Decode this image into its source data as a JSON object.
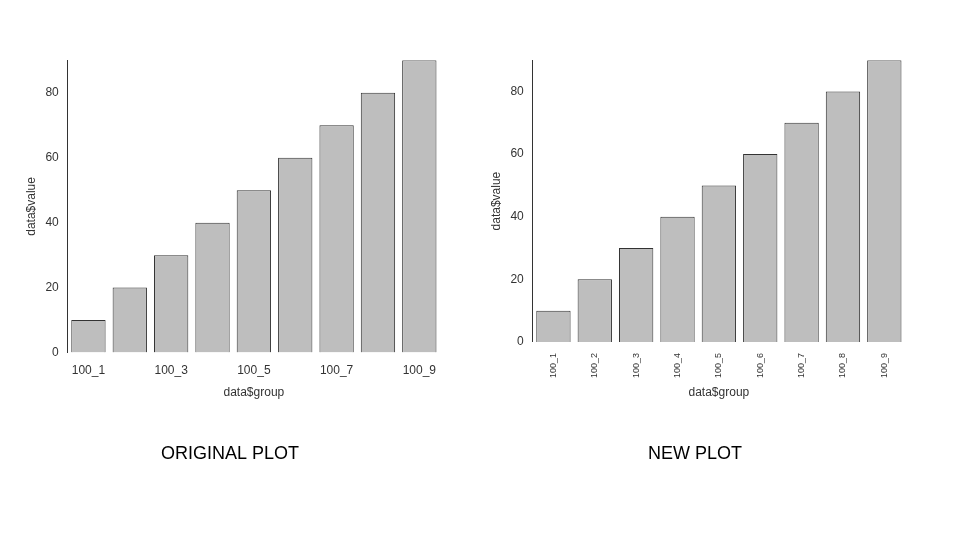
{
  "chart_data": [
    {
      "type": "bar",
      "title": "ORIGINAL PLOT",
      "x_label": "data$group",
      "y_label": "data$value",
      "categories": [
        "100_1",
        null,
        "100_3",
        null,
        "100_5",
        null,
        "100_7",
        null,
        "100_9"
      ],
      "values": [
        10,
        20,
        30,
        40,
        50,
        60,
        70,
        80,
        90
      ],
      "color": "#bebebe",
      "ylim": [
        0,
        90
      ],
      "yticks": [
        0,
        20,
        40,
        60,
        80
      ],
      "grid": false
    },
    {
      "type": "bar",
      "title": "NEW PLOT",
      "x_label": "data$group",
      "y_label": "data$value",
      "categories": [
        "100_1",
        "100_2",
        "100_3",
        "100_4",
        "100_5",
        "100_6",
        "100_7",
        "100_8",
        "100_9"
      ],
      "values": [
        10,
        20,
        30,
        40,
        50,
        60,
        70,
        80,
        90
      ],
      "color": "#bebebe",
      "ylim": [
        0,
        90
      ],
      "yticks": [
        0,
        20,
        40,
        60,
        80
      ],
      "grid": false
    }
  ]
}
